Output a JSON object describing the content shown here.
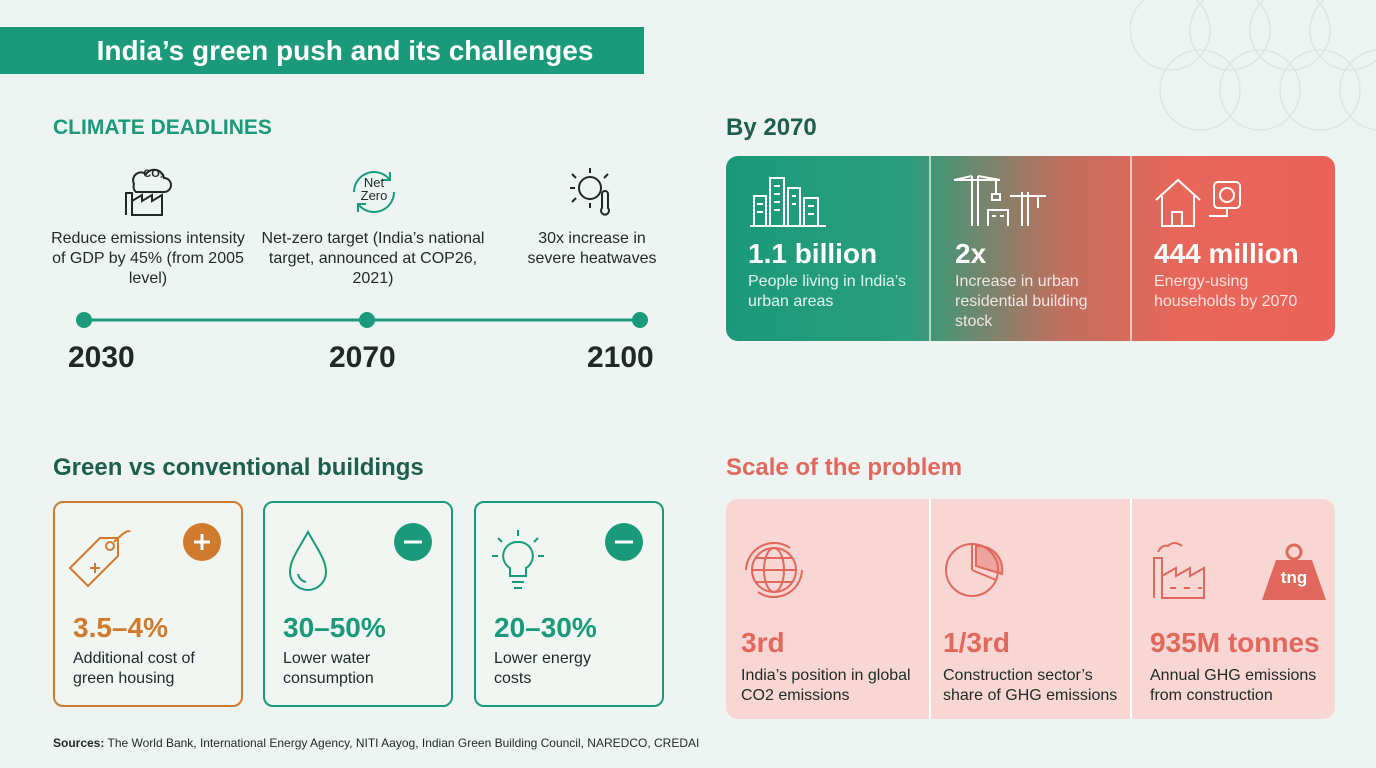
{
  "header": {
    "title": "India’s green push and its challenges"
  },
  "deadlines": {
    "heading": "CLIMATE DEADLINES",
    "items": [
      {
        "icon_text": "CO₂",
        "text": "Reduce emissions intensity of GDP by 45% (from 2005 level)",
        "year": "2030"
      },
      {
        "icon_text": "Net Zero",
        "text": "Net-zero target (India’s national target, announced at COP26, 2021)",
        "year": "2070"
      },
      {
        "text": "30x increase in severe heatwaves",
        "year": "2100"
      }
    ]
  },
  "by_2070": {
    "heading": "By 2070",
    "cards": [
      {
        "value": "1.1 billion",
        "label": "People living in India’s urban areas"
      },
      {
        "value": "2x",
        "label": "Increase in urban residential building stock"
      },
      {
        "value": "444 million",
        "label": "Energy-using households by 2070"
      }
    ]
  },
  "green_vs_conventional": {
    "heading": "Green vs conventional buildings",
    "cards": [
      {
        "value": "3.5–4%",
        "label": "Additional cost of green housing"
      },
      {
        "value": "30–50%",
        "label": "Lower water consumption"
      },
      {
        "value": "20–30%",
        "label": "Lower energy costs"
      }
    ]
  },
  "scale": {
    "heading": "Scale of the problem",
    "icon_text": "tng",
    "cards": [
      {
        "value": "3rd",
        "label": "India’s position in global CO2 emissions"
      },
      {
        "value": "1/3rd",
        "label": "Construction sector’s share of GHG emissions"
      },
      {
        "value": "935M tonnes",
        "label": "Annual GHG emissions from construction"
      }
    ]
  },
  "sources": {
    "label": "Sources:",
    "text": "The World Bank, International Energy Agency, NITI Aayog, Indian Green Building Council, NAREDCO, CREDAI"
  }
}
